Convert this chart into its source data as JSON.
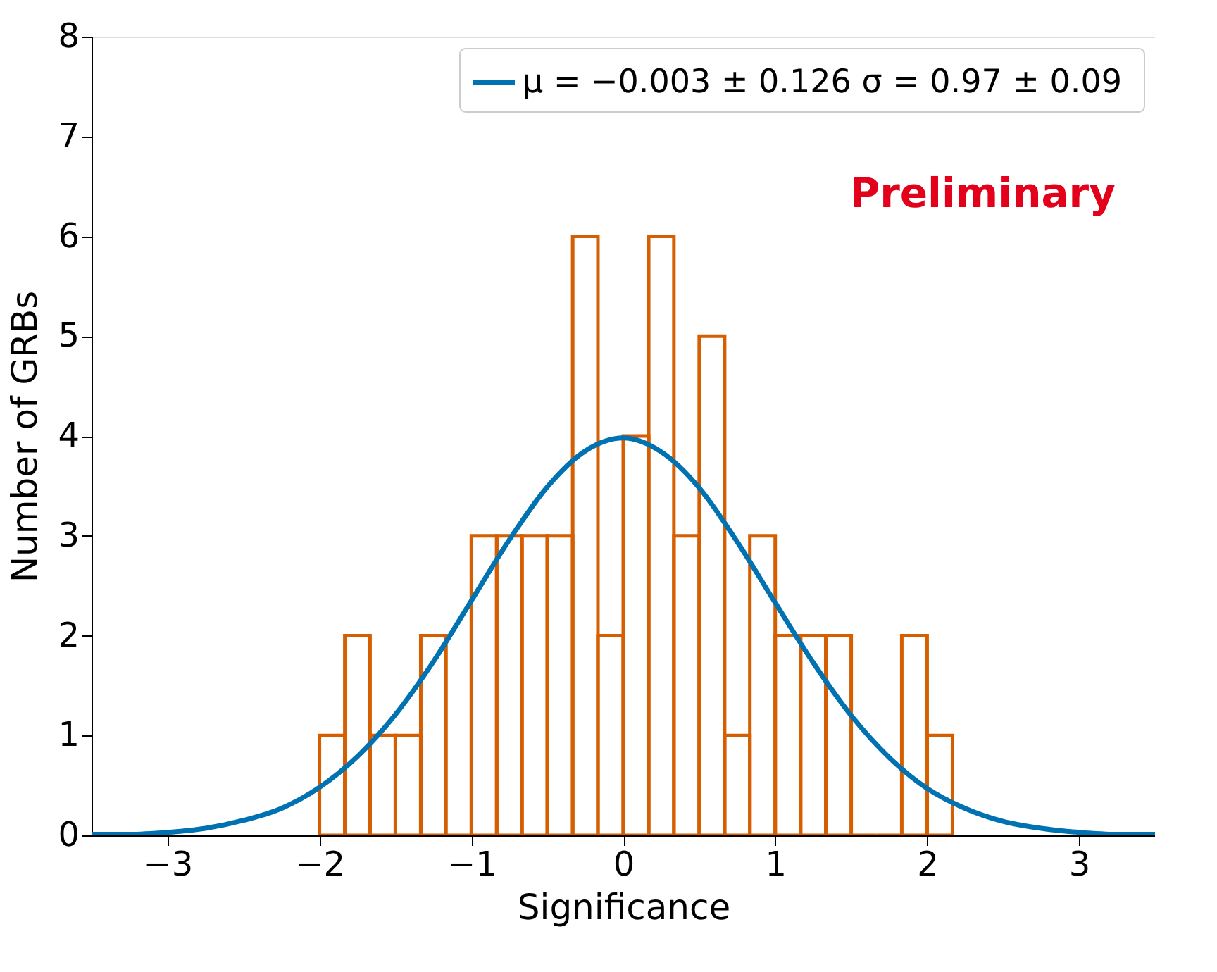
{
  "chart_data": {
    "type": "histogram",
    "xlabel": "Significance",
    "ylabel": "Number of GRBs",
    "xlim": [
      -3.5,
      3.5
    ],
    "ylim": [
      0,
      8
    ],
    "xticks": [
      -3,
      -2,
      -1,
      0,
      1,
      2,
      3
    ],
    "yticks": [
      0,
      1,
      2,
      3,
      4,
      5,
      6,
      7,
      8
    ],
    "grid": false,
    "legend": "top right",
    "annotations": [
      "Preliminary"
    ],
    "series": [
      {
        "color": "#d55e00",
        "bins": [
          -2,
          -1.833,
          -1.667,
          -1.5,
          -1.333,
          -1.167,
          -1,
          -0.833,
          -0.667,
          -0.5,
          -0.333,
          -0.167,
          0,
          0.167,
          0.333,
          0.5,
          0.667,
          0.833,
          1,
          1.167,
          1.333,
          1.5,
          1.667,
          1.833,
          2,
          2.167
        ],
        "values": [
          1,
          2,
          1,
          1,
          2,
          0,
          3,
          3,
          3,
          3,
          6,
          2,
          4,
          6,
          3,
          5,
          1,
          3,
          2,
          2,
          2,
          0,
          0,
          2,
          1
        ]
      },
      {
        "type": "line",
        "name": "μ = −0.003 ± 0.126  σ = 0.97 ± 0.09",
        "color": "#0072b2",
        "x": [
          -3.5,
          -3.25,
          -3,
          -2.75,
          -2.5,
          -2.25,
          -2,
          -1.75,
          -1.5,
          -1.25,
          -1,
          -0.75,
          -0.5,
          -0.25,
          0,
          0.25,
          0.5,
          0.75,
          1,
          1.25,
          1.5,
          1.75,
          2,
          2.25,
          2.5,
          2.75,
          3,
          3.25,
          3.5
        ],
        "values": [
          0.01,
          0.01,
          0.03,
          0.07,
          0.15,
          0.27,
          0.48,
          0.79,
          1.21,
          1.74,
          2.35,
          2.96,
          3.49,
          3.85,
          3.98,
          3.84,
          3.48,
          2.94,
          2.33,
          1.73,
          1.2,
          0.78,
          0.47,
          0.27,
          0.14,
          0.07,
          0.03,
          0.01,
          0.01
        ]
      }
    ]
  }
}
